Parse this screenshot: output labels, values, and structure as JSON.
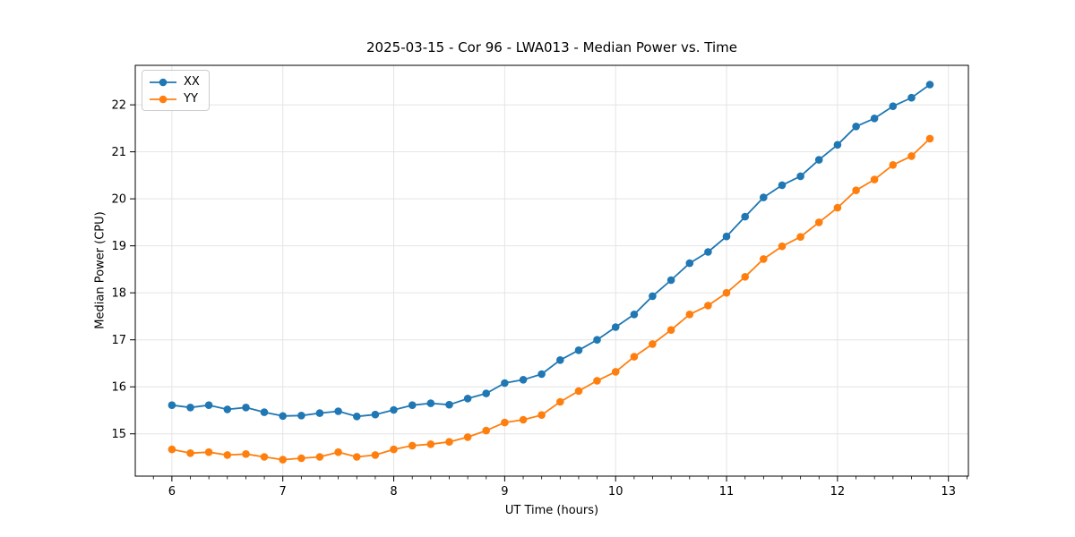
{
  "figure": {
    "title": "2025-03-15 - Cor 96 - LWA013 - Median Power vs. Time",
    "xlabel": "UT Time (hours)",
    "ylabel": "Median Power (CPU)"
  },
  "chart_data": {
    "type": "line",
    "title": "2025-03-15 - Cor 96 - LWA013 - Median Power vs. Time",
    "xlabel": "UT Time (hours)",
    "ylabel": "Median Power (CPU)",
    "xlim": [
      5.67,
      13.18
    ],
    "ylim": [
      14.1,
      22.84
    ],
    "xticks": [
      6,
      7,
      8,
      9,
      10,
      11,
      12,
      13
    ],
    "yticks": [
      15,
      16,
      17,
      18,
      19,
      20,
      21,
      22
    ],
    "minor_xtick_step": 0.16667,
    "grid": true,
    "grid_color": "#e4e4e4",
    "legend_position": "upper left",
    "marker": "circle",
    "x": [
      6.0,
      6.167,
      6.333,
      6.5,
      6.667,
      6.833,
      7.0,
      7.167,
      7.333,
      7.5,
      7.667,
      7.833,
      8.0,
      8.167,
      8.333,
      8.5,
      8.667,
      8.833,
      9.0,
      9.167,
      9.333,
      9.5,
      9.667,
      9.833,
      10.0,
      10.167,
      10.333,
      10.5,
      10.667,
      10.833,
      11.0,
      11.167,
      11.333,
      11.5,
      11.667,
      11.833,
      12.0,
      12.167,
      12.333,
      12.5,
      12.667,
      12.833
    ],
    "series": [
      {
        "name": "XX",
        "color": "#1f77b4",
        "values": [
          15.61,
          15.56,
          15.61,
          15.52,
          15.56,
          15.46,
          15.38,
          15.39,
          15.44,
          15.48,
          15.37,
          15.41,
          15.51,
          15.61,
          15.65,
          15.62,
          15.75,
          15.86,
          16.08,
          16.15,
          16.27,
          16.57,
          16.78,
          17.0,
          17.27,
          17.54,
          17.93,
          18.27,
          18.63,
          18.87,
          19.2,
          19.62,
          20.03,
          20.29,
          20.48,
          20.83,
          21.15,
          21.54,
          21.71,
          21.97,
          22.15,
          22.43
        ]
      },
      {
        "name": "YY",
        "color": "#ff7f0e",
        "values": [
          14.67,
          14.59,
          14.61,
          14.55,
          14.57,
          14.51,
          14.45,
          14.48,
          14.51,
          14.61,
          14.51,
          14.55,
          14.67,
          14.75,
          14.78,
          14.83,
          14.93,
          15.07,
          15.24,
          15.3,
          15.4,
          15.68,
          15.91,
          16.13,
          16.32,
          16.64,
          16.91,
          17.21,
          17.54,
          17.73,
          18.0,
          18.34,
          18.72,
          18.99,
          19.19,
          19.5,
          19.81,
          20.18,
          20.41,
          20.72,
          20.91,
          21.28
        ]
      }
    ]
  }
}
